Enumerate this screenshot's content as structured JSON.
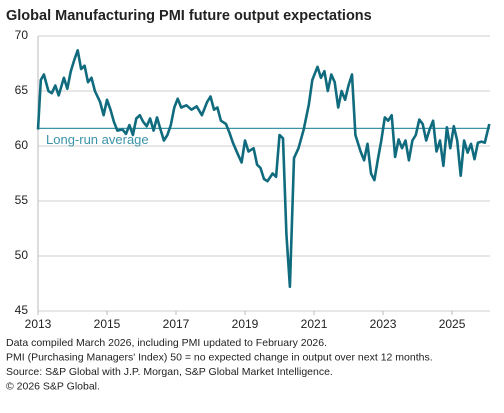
{
  "chart_data": {
    "type": "line",
    "title": "Global Manufacturing PMI future output expectations",
    "x": [
      2013.0,
      2013.08,
      2013.17,
      2013.3,
      2013.4,
      2013.5,
      2013.6,
      2013.75,
      2013.85,
      2013.95,
      2014.05,
      2014.15,
      2014.25,
      2014.35,
      2014.45,
      2014.55,
      2014.65,
      2014.8,
      2014.9,
      2015.0,
      2015.1,
      2015.2,
      2015.3,
      2015.45,
      2015.55,
      2015.65,
      2015.75,
      2015.85,
      2015.95,
      2016.05,
      2016.15,
      2016.25,
      2016.35,
      2016.45,
      2016.55,
      2016.65,
      2016.75,
      2016.85,
      2016.95,
      2017.05,
      2017.15,
      2017.3,
      2017.45,
      2017.6,
      2017.75,
      2017.9,
      2018.0,
      2018.1,
      2018.2,
      2018.3,
      2018.45,
      2018.55,
      2018.65,
      2018.8,
      2018.9,
      2019.0,
      2019.1,
      2019.25,
      2019.35,
      2019.45,
      2019.55,
      2019.65,
      2019.8,
      2019.9,
      2020.0,
      2020.1,
      2020.2,
      2020.3,
      2020.42,
      2020.55,
      2020.7,
      2020.85,
      2020.95,
      2021.1,
      2021.2,
      2021.3,
      2021.4,
      2021.5,
      2021.6,
      2021.7,
      2021.8,
      2021.9,
      2022.0,
      2022.1,
      2022.2,
      2022.35,
      2022.45,
      2022.55,
      2022.65,
      2022.75,
      2022.85,
      2022.95,
      2023.05,
      2023.15,
      2023.25,
      2023.35,
      2023.45,
      2023.55,
      2023.65,
      2023.75,
      2023.85,
      2023.95,
      2024.05,
      2024.15,
      2024.25,
      2024.35,
      2024.45,
      2024.55,
      2024.65,
      2024.75,
      2024.85,
      2024.95,
      2025.05,
      2025.15,
      2025.25,
      2025.35,
      2025.45,
      2025.55,
      2025.65,
      2025.75,
      2025.85,
      2025.95,
      2026.08
    ],
    "series": [
      {
        "name": "Future output expectations",
        "color": "#0f6b7d",
        "values": [
          61.5,
          66,
          66.5,
          65,
          64.8,
          65.5,
          64.6,
          66.2,
          65.2,
          66.8,
          67.8,
          68.7,
          67,
          67.3,
          65.8,
          66.2,
          65,
          64,
          62.8,
          64.2,
          63.3,
          62.2,
          61.4,
          61.5,
          61.1,
          61.9,
          61.0,
          62.5,
          62.8,
          62.2,
          61.8,
          62.5,
          61.4,
          62.6,
          61.5,
          60.5,
          61.0,
          61.9,
          63.5,
          64.3,
          63.5,
          63.7,
          63.3,
          63.6,
          62.8,
          64.0,
          64.5,
          63.3,
          63.5,
          62.3,
          62.0,
          61.2,
          60.3,
          59.2,
          58.5,
          60.5,
          59.5,
          59.8,
          58.3,
          58.0,
          57.0,
          56.8,
          57.5,
          57.2,
          61.0,
          60.7,
          52,
          47.2,
          58.9,
          59.8,
          61.5,
          63.8,
          66.0,
          67.2,
          66.2,
          66.8,
          65.0,
          66.5,
          65.8,
          63.5,
          65.0,
          64.2,
          65.5,
          66.5,
          61.0,
          59.5,
          58.7,
          60.2,
          57.5,
          56.9,
          58.8,
          60.5,
          62.6,
          62.3,
          62.8,
          59.0,
          60.6,
          59.8,
          60.5,
          58.7,
          60.5,
          61.0,
          62.4,
          62.0,
          60.5,
          61.5,
          62.3,
          59.5,
          60.5,
          58.2,
          61.7,
          59.8,
          61.8,
          60.5,
          57.3,
          60.5,
          59.4,
          60.2,
          58.8,
          60.3,
          60.4,
          60.3,
          62.0
        ]
      }
    ],
    "reference_line": {
      "value": 61.6,
      "label": "Long-run average",
      "color": "#3a93a6"
    },
    "xlim": [
      2013,
      2026.1
    ],
    "xticks": [
      2013,
      2015,
      2017,
      2019,
      2021,
      2023,
      2025
    ],
    "ylim": [
      45,
      70
    ],
    "yticks": [
      45,
      50,
      55,
      60,
      65,
      70
    ],
    "grid": true,
    "notes": [
      "Data compiled March 2026, including PMI updated to February 2026.",
      "PMI (Purchasing Managers' Index) 50 = no expected change in output over next 12 months.",
      "Source: S&P Global with J.P. Morgan, S&P Global Market Intelligence.",
      "© 2026 S&P Global."
    ]
  }
}
